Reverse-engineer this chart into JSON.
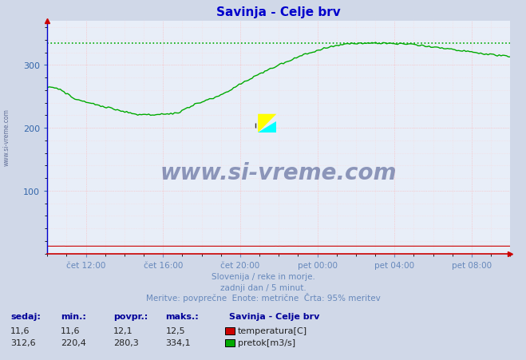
{
  "title": "Savinja - Celje brv",
  "title_color": "#0000cc",
  "bg_color": "#d0d8e8",
  "plot_bg_color": "#e8eef8",
  "grid_color_major": "#ffaaaa",
  "grid_color_minor": "#ffd0d0",
  "xlabel_color": "#6688bb",
  "ylabel_color": "#3366aa",
  "axis_color": "#cc0000",
  "subtitle_lines": [
    "Slovenija / reke in morje.",
    "zadnji dan / 5 minut.",
    "Meritve: povprečne  Enote: metrične  Črta: 95% meritev"
  ],
  "subtitle_color": "#6688bb",
  "x_tick_labels": [
    "čet 12:00",
    "čet 16:00",
    "čet 20:00",
    "pet 00:00",
    "pet 04:00",
    "pet 08:00"
  ],
  "y_ticks": [
    100,
    200,
    300
  ],
  "ylim": [
    0,
    370
  ],
  "max_line_value": 334.1,
  "temp_color": "#cc0000",
  "flow_color": "#00aa00",
  "table_headers": [
    "sedaj:",
    "min.:",
    "povpr.:",
    "maks.:"
  ],
  "table_color": "#000099",
  "table_values_temp": [
    "11,6",
    "11,6",
    "12,1",
    "12,5"
  ],
  "table_values_flow": [
    "312,6",
    "220,4",
    "280,3",
    "334,1"
  ],
  "legend_title": "Savinja - Celje brv",
  "legend_items": [
    "temperatura[C]",
    "pretok[m3/s]"
  ],
  "legend_colors": [
    "#cc0000",
    "#00aa00"
  ],
  "watermark": "www.si-vreme.com"
}
